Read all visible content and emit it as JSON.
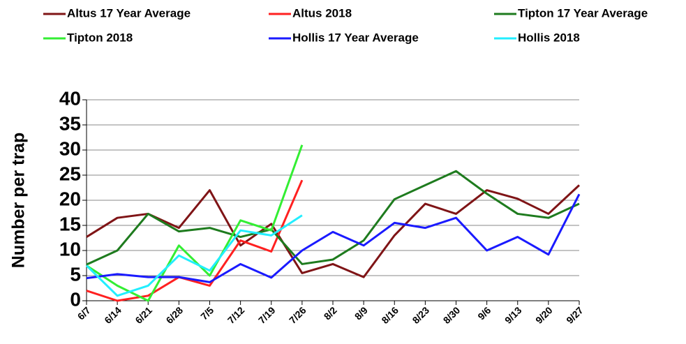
{
  "chart_data": {
    "type": "line",
    "y_label": "Number per trap",
    "categories": [
      "6/7",
      "6/14",
      "6/21",
      "6/28",
      "7/5",
      "7/12",
      "7/19",
      "7/26",
      "8/2",
      "8/9",
      "8/16",
      "8/23",
      "8/30",
      "9/6",
      "9/13",
      "9/20",
      "9/27"
    ],
    "series": [
      {
        "name": "Altus 17 Year Average",
        "color": "#7f1416",
        "values": [
          12.7,
          16.5,
          17.3,
          14.5,
          22,
          11,
          15.3,
          5.5,
          7.3,
          4.7,
          13,
          19.3,
          17.3,
          22,
          20.3,
          17.3,
          23
        ]
      },
      {
        "name": "Altus 2018",
        "color": "#ff2020",
        "values": [
          2,
          0,
          1,
          4.7,
          3,
          12,
          9.8,
          24,
          null,
          null,
          null,
          null,
          null,
          null,
          null,
          null,
          null
        ]
      },
      {
        "name": "Tipton 17 Year Average",
        "color": "#1e7b1e",
        "values": [
          7.2,
          10,
          17.3,
          13.8,
          14.5,
          12.7,
          14.2,
          7.3,
          8.2,
          12,
          20.2,
          23,
          25.8,
          21.3,
          17.3,
          16.5,
          19.3
        ]
      },
      {
        "name": "Tipton 2018",
        "color": "#33ee33",
        "values": [
          7,
          3,
          0,
          11,
          5,
          16,
          14,
          31,
          null,
          null,
          null,
          null,
          null,
          null,
          null,
          null,
          null
        ]
      },
      {
        "name": "Hollis 17 Year Average",
        "color": "#1a1aff",
        "values": [
          4.5,
          5.3,
          4.7,
          4.7,
          3.7,
          7.3,
          4.6,
          10,
          13.7,
          11,
          15.5,
          14.5,
          16.5,
          10,
          12.7,
          9.2,
          21.2
        ]
      },
      {
        "name": "Hollis 2018",
        "color": "#22eeff",
        "values": [
          7,
          1,
          3,
          9,
          6,
          14,
          13,
          17,
          null,
          null,
          null,
          null,
          null,
          null,
          null,
          null,
          null
        ]
      }
    ],
    "ylim": [
      0,
      40
    ],
    "yticks": [
      0,
      5,
      10,
      15,
      20,
      25,
      30,
      35,
      40
    ],
    "grid": true,
    "legend": "top"
  }
}
